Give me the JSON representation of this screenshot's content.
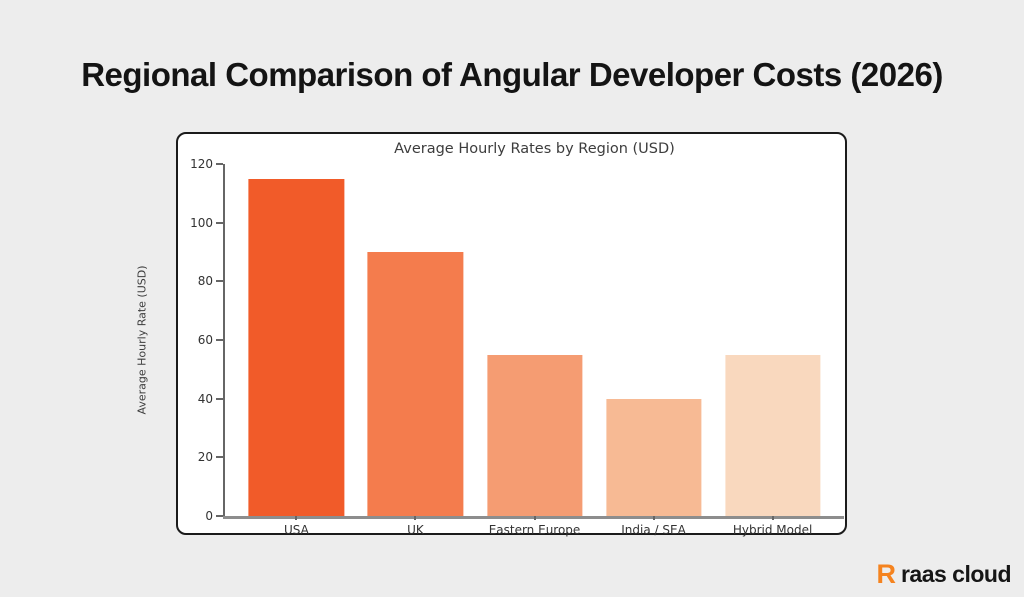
{
  "page": {
    "title": "Regional Comparison of Angular Developer Costs (2026)",
    "background_color": "#EDEDED"
  },
  "brand": {
    "logo_letter": "R",
    "name": "raas cloud",
    "logo_color": "#F5831F"
  },
  "chart_data": {
    "type": "bar",
    "title": "Average Hourly Rates by Region (USD)",
    "categories": [
      "USA",
      "UK",
      "Eastern Europe",
      "India / SEA",
      "Hybrid Model"
    ],
    "values": [
      115,
      90,
      55,
      40,
      55
    ],
    "bar_colors": [
      "#F15B29",
      "#F47C4D",
      "#F59C72",
      "#F7BA94",
      "#F9D8BE"
    ],
    "xlabel": "",
    "ylabel": "Average Hourly Rate (USD)",
    "ylim": [
      0,
      120
    ],
    "yticks": [
      0,
      20,
      40,
      60,
      80,
      100,
      120
    ],
    "xlim_units": [
      -0.6,
      4.6
    ],
    "bar_width_units": 0.8,
    "grid": false,
    "legend": null,
    "frame": {
      "background": "#FFFFFF",
      "border_color": "#1b1b1b"
    }
  }
}
